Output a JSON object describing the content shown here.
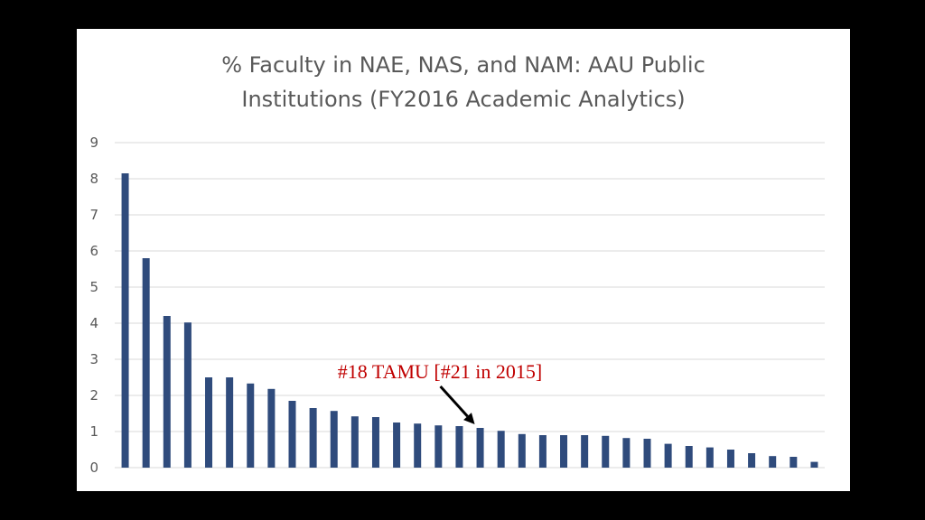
{
  "chart_data": {
    "type": "bar",
    "title_lines": [
      "% Faculty in NAE, NAS, and NAM: AAU Public",
      "Institutions (FY2016 Academic Analytics)"
    ],
    "xlabel": "",
    "ylabel": "",
    "ylim": [
      0,
      9
    ],
    "yticks": [
      0,
      1,
      2,
      3,
      4,
      5,
      6,
      7,
      8,
      9
    ],
    "grid": true,
    "legend": "none",
    "values": [
      8.15,
      5.8,
      4.2,
      4.02,
      2.5,
      2.5,
      2.33,
      2.18,
      1.85,
      1.65,
      1.57,
      1.42,
      1.4,
      1.25,
      1.22,
      1.17,
      1.15,
      1.1,
      1.02,
      0.93,
      0.9,
      0.9,
      0.9,
      0.88,
      0.82,
      0.8,
      0.66,
      0.6,
      0.56,
      0.5,
      0.4,
      0.32,
      0.3,
      0.16
    ],
    "annotation": {
      "text": "#18 TAMU [#21 in 2015]",
      "bar_index": 17
    },
    "colors": {
      "bar": "#2f4b7c",
      "grid": "#d9d9d9",
      "text": "#595959",
      "annotation": "#c00000",
      "arrow": "#000000"
    }
  }
}
